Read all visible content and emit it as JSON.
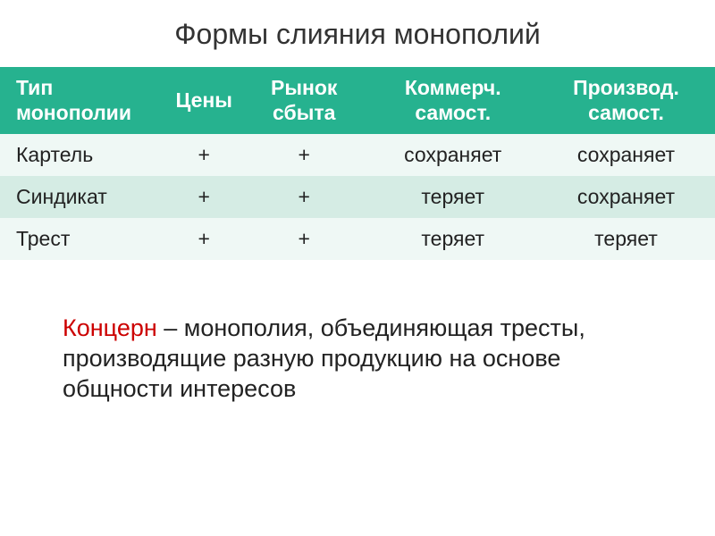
{
  "title": "Формы слияния монополий",
  "table": {
    "header_bg": "#26b28f",
    "header_color": "#ffffff",
    "row_odd_bg": "#eff8f5",
    "row_even_bg": "#d5ece4",
    "columns": [
      "Тип монополии",
      "Цены",
      "Рынок сбыта",
      "Коммерч. самост.",
      "Производ. самост."
    ],
    "rows": [
      [
        "Картель",
        "+",
        "+",
        "сохраняет",
        "сохраняет"
      ],
      [
        "Синдикат",
        "+",
        "+",
        "теряет",
        "сохраняет"
      ],
      [
        "Трест",
        "+",
        "+",
        "теряет",
        "теряет"
      ]
    ]
  },
  "definition": {
    "term": "Концерн",
    "term_color": "#cc0000",
    "text": " – монополия, объединяющая тресты, производящие разную продукцию на основе общности интересов"
  }
}
